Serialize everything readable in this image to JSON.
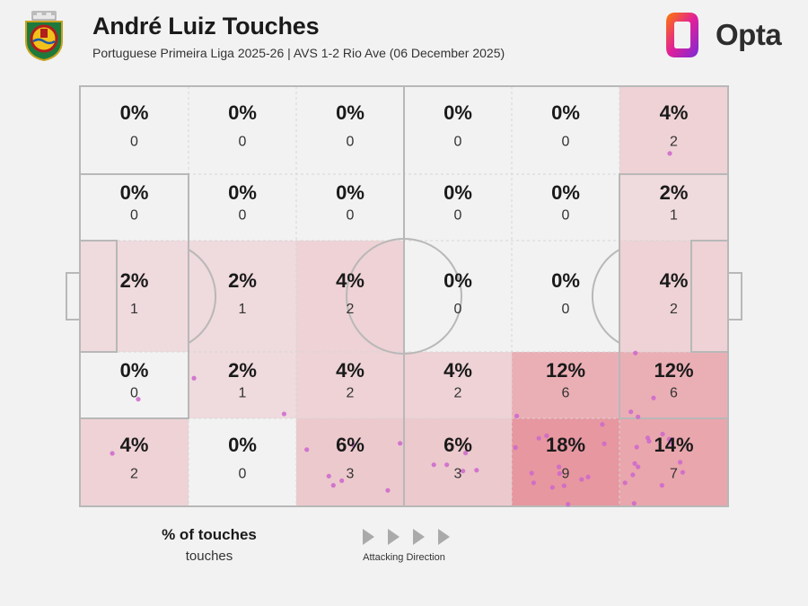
{
  "header": {
    "title": "André Luiz Touches",
    "subtitle": "Portuguese Primeira Liga 2025-26 | AVS 1-2 Rio Ave (06 December 2025)",
    "brand": "Opta"
  },
  "legend": {
    "main": "% of touches",
    "sub": "touches",
    "direction": "Attacking Direction"
  },
  "colors": {
    "background": "#f2f2f2",
    "heat": "#e0606e",
    "dot": "#cc66cc",
    "lines": "#b8b8b8"
  },
  "chart_data": {
    "type": "heatmap",
    "title": "André Luiz Touches",
    "total_touches": 50,
    "columns": 6,
    "rows": 5,
    "direction": "left-to-right",
    "zones": [
      [
        {
          "pct": "0%",
          "count": 0
        },
        {
          "pct": "0%",
          "count": 0
        },
        {
          "pct": "0%",
          "count": 0
        },
        {
          "pct": "0%",
          "count": 0
        },
        {
          "pct": "0%",
          "count": 0
        },
        {
          "pct": "4%",
          "count": 2
        }
      ],
      [
        {
          "pct": "0%",
          "count": 0
        },
        {
          "pct": "0%",
          "count": 0
        },
        {
          "pct": "0%",
          "count": 0
        },
        {
          "pct": "0%",
          "count": 0
        },
        {
          "pct": "0%",
          "count": 0
        },
        {
          "pct": "2%",
          "count": 1
        }
      ],
      [
        {
          "pct": "2%",
          "count": 1
        },
        {
          "pct": "2%",
          "count": 1
        },
        {
          "pct": "4%",
          "count": 2
        },
        {
          "pct": "0%",
          "count": 0
        },
        {
          "pct": "0%",
          "count": 0
        },
        {
          "pct": "4%",
          "count": 2
        }
      ],
      [
        {
          "pct": "0%",
          "count": 0
        },
        {
          "pct": "2%",
          "count": 1
        },
        {
          "pct": "4%",
          "count": 2
        },
        {
          "pct": "4%",
          "count": 2
        },
        {
          "pct": "12%",
          "count": 6
        },
        {
          "pct": "12%",
          "count": 6
        }
      ],
      [
        {
          "pct": "4%",
          "count": 2
        },
        {
          "pct": "0%",
          "count": 0
        },
        {
          "pct": "6%",
          "count": 3
        },
        {
          "pct": "6%",
          "count": 3
        },
        {
          "pct": "18%",
          "count": 9
        },
        {
          "pct": "14%",
          "count": 7
        }
      ]
    ],
    "touches": [
      [
        85.0,
        22.5
      ],
      [
        85.7,
        36.5
      ],
      [
        91.0,
        84.0
      ],
      [
        9.0,
        25.5
      ],
      [
        31.5,
        22.0
      ],
      [
        49.4,
        15.0
      ],
      [
        88.5,
        25.8
      ],
      [
        91.3,
        15.1
      ],
      [
        92.6,
        10.5
      ],
      [
        17.6,
        30.5
      ],
      [
        35.0,
        13.5
      ],
      [
        42.2,
        14.6
      ],
      [
        40.4,
        6.1
      ],
      [
        56.6,
        9.9
      ],
      [
        59.5,
        12.7
      ],
      [
        67.4,
        21.5
      ],
      [
        72.0,
        16.8
      ],
      [
        67.2,
        14.0
      ],
      [
        70.8,
        16.2
      ],
      [
        80.6,
        19.5
      ],
      [
        80.9,
        14.9
      ],
      [
        86.1,
        21.3
      ],
      [
        90.9,
        16.0
      ],
      [
        89.9,
        17.2
      ],
      [
        87.6,
        16.3
      ],
      [
        87.8,
        15.5
      ],
      [
        85.9,
        14.1
      ],
      [
        5.0,
        12.6
      ],
      [
        39.1,
        5.0
      ],
      [
        38.4,
        7.2
      ],
      [
        47.5,
        3.8
      ],
      [
        59.1,
        8.4
      ],
      [
        61.2,
        8.6
      ],
      [
        54.6,
        9.9
      ],
      [
        69.7,
        7.9
      ],
      [
        70.0,
        5.6
      ],
      [
        74.7,
        4.9
      ],
      [
        72.9,
        4.5
      ],
      [
        73.9,
        9.4
      ],
      [
        75.3,
        0.5
      ],
      [
        74.0,
        7.8
      ],
      [
        77.4,
        6.4
      ],
      [
        78.4,
        7.0
      ],
      [
        84.1,
        5.6
      ],
      [
        86.1,
        9.4
      ],
      [
        89.8,
        5.0
      ],
      [
        93.0,
        8.1
      ],
      [
        85.5,
        0.7
      ],
      [
        85.3,
        7.5
      ],
      [
        85.6,
        10.2
      ]
    ]
  }
}
